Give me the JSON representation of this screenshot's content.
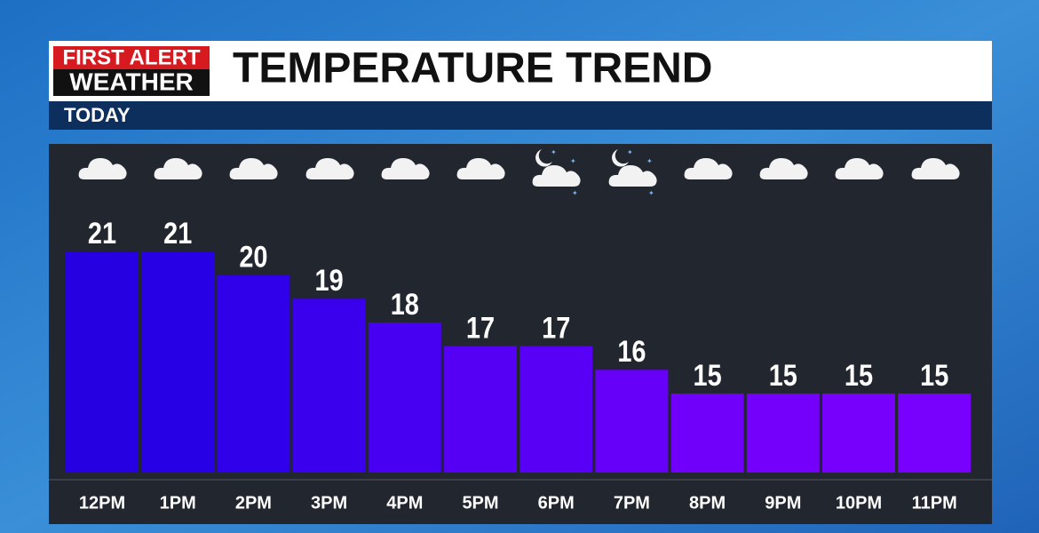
{
  "header": {
    "logo_top": "FIRST ALERT",
    "logo_bottom": "WEATHER"
  },
  "chart_data": {
    "type": "bar",
    "title": "TEMPERATURE TREND",
    "subtitle": "TODAY",
    "categories": [
      "12PM",
      "1PM",
      "2PM",
      "3PM",
      "4PM",
      "5PM",
      "6PM",
      "7PM",
      "8PM",
      "9PM",
      "10PM",
      "11PM"
    ],
    "values": [
      21,
      21,
      20,
      19,
      18,
      17,
      17,
      16,
      15,
      15,
      15,
      15
    ],
    "colors": [
      "#2600e0",
      "#2800e6",
      "#3000ea",
      "#3a00ee",
      "#4800f2",
      "#5500f5",
      "#5800f6",
      "#6600f8",
      "#7000fa",
      "#7400fb",
      "#7600fc",
      "#7800fd"
    ]
  }
}
